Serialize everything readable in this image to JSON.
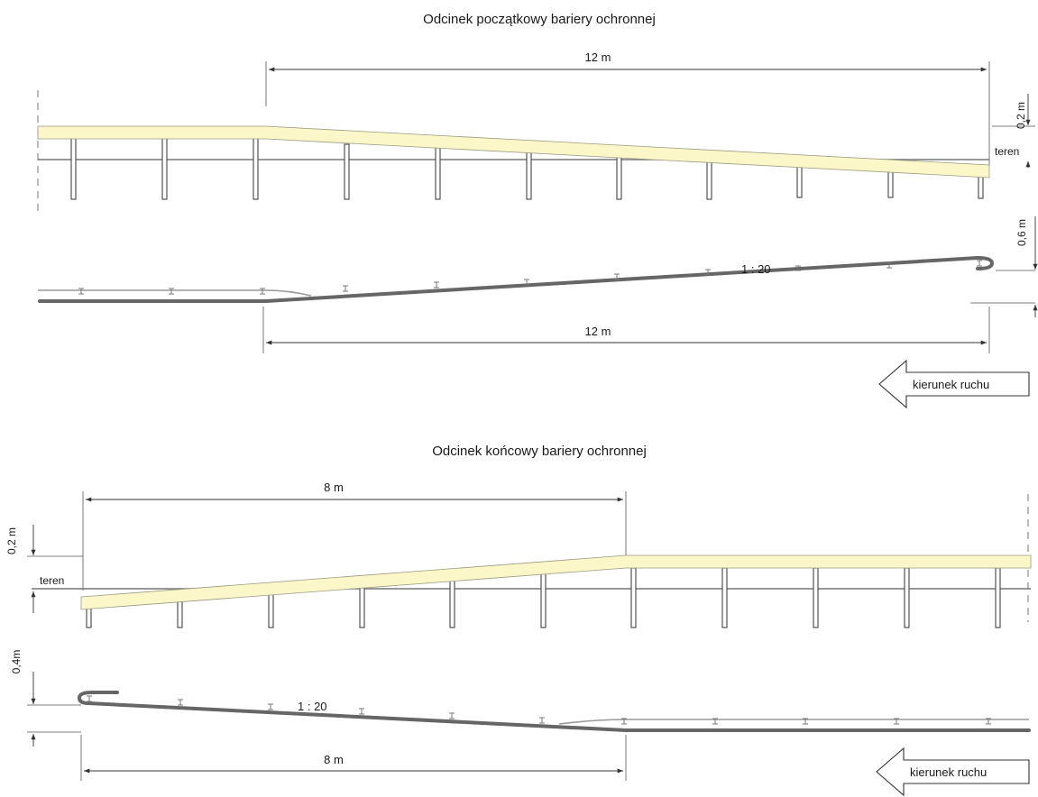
{
  "top_section": {
    "title": "Odcinek początkowy bariery ochronnej",
    "elevation_length": "12 m",
    "height_label": "0,2 m",
    "ground_label": "teren",
    "offset_label": "0,6 m",
    "slope_label": "1 : 20",
    "plan_length": "12 m",
    "direction_label": "kierunek ruchu"
  },
  "bottom_section": {
    "title": "Odcinek końcowy bariery ochronnej",
    "elevation_length": "8 m",
    "height_label": "0,2 m",
    "ground_label": "teren",
    "offset_label": "0,4m",
    "slope_label": "1 : 20",
    "plan_length": "8 m",
    "direction_label": "kierunek ruchu"
  },
  "colors": {
    "beam_fill": "#fbf7c9",
    "line": "#666666"
  }
}
